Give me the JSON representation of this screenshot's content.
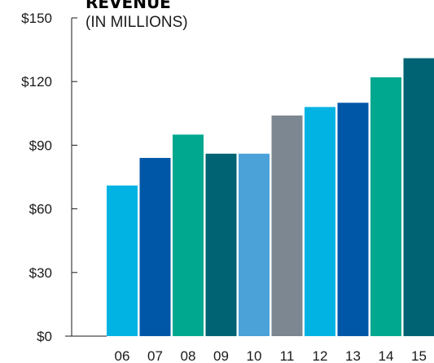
{
  "chart_data": {
    "type": "bar",
    "title": "REVENUE",
    "subtitle": "(IN MILLIONS)",
    "categories": [
      "06",
      "07",
      "08",
      "09",
      "10",
      "11",
      "12",
      "13",
      "14",
      "15"
    ],
    "values": [
      71,
      84,
      95,
      86,
      86,
      104,
      108,
      110,
      122,
      131
    ],
    "colors": [
      "#00b3e3",
      "#0057a8",
      "#00a88f",
      "#006373",
      "#4aa2d9",
      "#7c8791",
      "#00b3e3",
      "#0057a8",
      "#00a88f",
      "#006373"
    ],
    "y_ticks": [
      "$0",
      "$30",
      "$60",
      "$90",
      "$120",
      "$150"
    ],
    "ylim": [
      0,
      150
    ],
    "grid": false,
    "legend": "none"
  }
}
